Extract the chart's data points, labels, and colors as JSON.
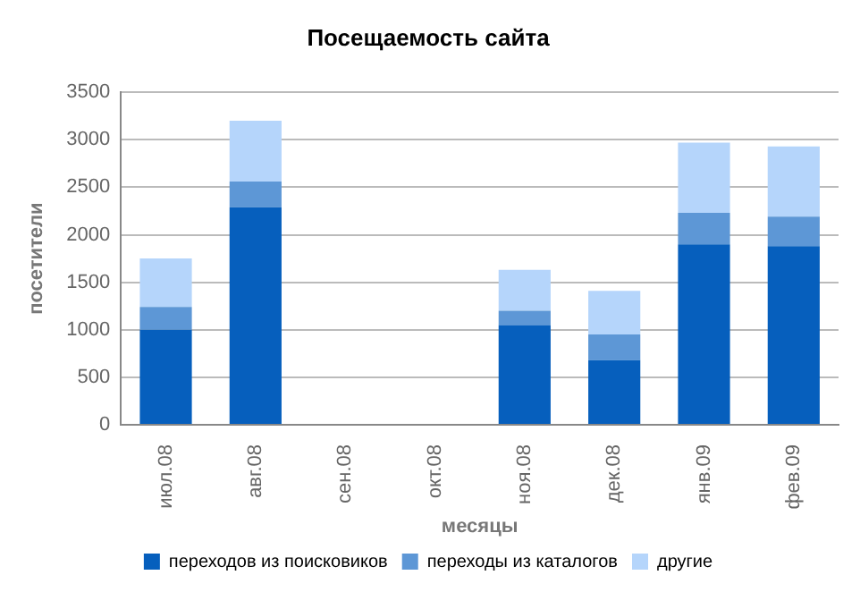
{
  "chart_data": {
    "type": "bar",
    "title": "Посещаемость сайта",
    "xlabel": "месяцы",
    "ylabel": "посетители",
    "categories": [
      "июл.08",
      "авг.08",
      "сен.08",
      "окт.08",
      "ноя.08",
      "дек.08",
      "янв.09",
      "фев.09"
    ],
    "stacked": true,
    "ylim": [
      0,
      3500
    ],
    "yticks": [
      0,
      500,
      1000,
      1500,
      2000,
      2500,
      3000,
      3500
    ],
    "grid": "y",
    "legend": "bottom",
    "series": [
      {
        "name": "переходов из поисковиков",
        "color": "#065fbd",
        "values": [
          1000,
          2290,
          null,
          null,
          1050,
          680,
          1900,
          1880
        ]
      },
      {
        "name": "переходы из каталогов",
        "color": "#5d97d6",
        "values": [
          240,
          270,
          null,
          null,
          150,
          270,
          330,
          310
        ]
      },
      {
        "name": "другие",
        "color": "#b5d5fb",
        "values": [
          510,
          640,
          null,
          null,
          430,
          460,
          740,
          740
        ]
      }
    ]
  }
}
